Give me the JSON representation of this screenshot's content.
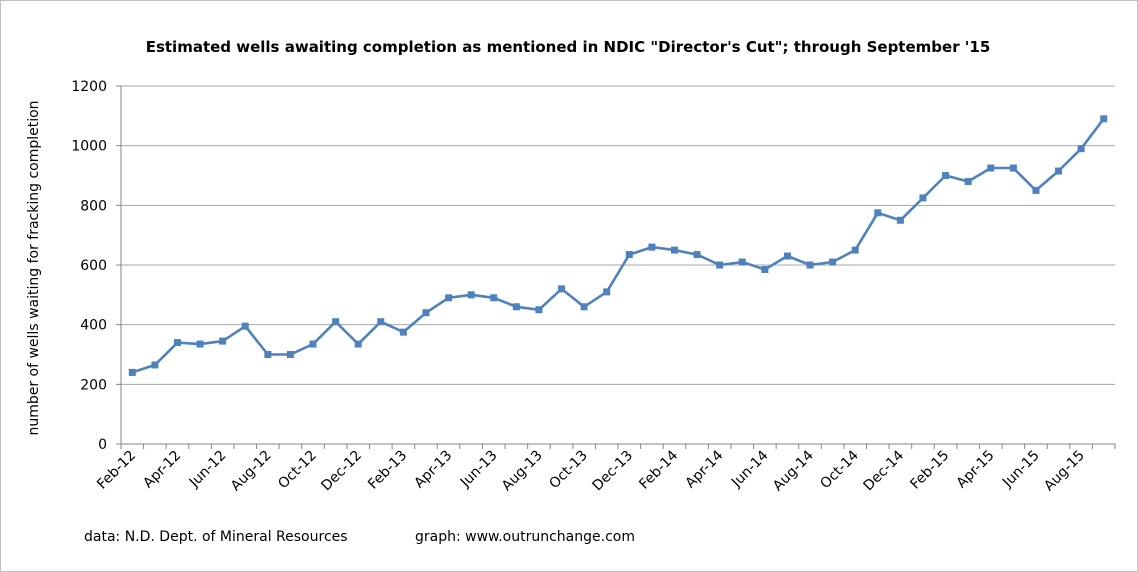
{
  "chart_data": {
    "type": "line",
    "title": "Estimated wells awaiting completion as mentioned in NDIC \"Director's Cut\"; through September '15",
    "ylabel": "number of wells waiting for fracking completion",
    "xlabel": "",
    "ylim": [
      0,
      1200
    ],
    "yticks": [
      0,
      200,
      400,
      600,
      800,
      1000,
      1200
    ],
    "grid": "horizontal",
    "legend": "none",
    "series": [
      {
        "color": "#4f81bd",
        "marker": "square",
        "values": [
          240,
          265,
          340,
          335,
          345,
          395,
          300,
          300,
          335,
          410,
          335,
          410,
          375,
          440,
          490,
          500,
          490,
          460,
          450,
          520,
          460,
          510,
          635,
          660,
          650,
          635,
          600,
          610,
          585,
          630,
          600,
          610,
          650,
          775,
          750,
          825,
          900,
          880,
          925,
          925,
          850,
          915,
          990,
          1090
        ]
      }
    ],
    "categories": [
      "Feb-12",
      "Mar-12",
      "Apr-12",
      "May-12",
      "Jun-12",
      "Jul-12",
      "Aug-12",
      "Sep-12",
      "Oct-12",
      "Nov-12",
      "Dec-12",
      "Jan-13",
      "Feb-13",
      "Mar-13",
      "Apr-13",
      "May-13",
      "Jun-13",
      "Jul-13",
      "Aug-13",
      "Sep-13",
      "Oct-13",
      "Nov-13",
      "Dec-13",
      "Jan-14",
      "Feb-14",
      "Mar-14",
      "Apr-14",
      "May-14",
      "Jun-14",
      "Jul-14",
      "Aug-14",
      "Sep-14",
      "Oct-14",
      "Nov-14",
      "Dec-14",
      "Jan-15",
      "Feb-15",
      "Mar-15",
      "Apr-15",
      "May-15",
      "Jun-15",
      "Jul-15",
      "Aug-15",
      "Sep-15"
    ],
    "tick_labels": [
      "Feb-12",
      "Apr-12",
      "Jun-12",
      "Aug-12",
      "Oct-12",
      "Dec-12",
      "Feb-13",
      "Apr-13",
      "Jun-13",
      "Aug-13",
      "Oct-13",
      "Dec-13",
      "Feb-14",
      "Apr-14",
      "Jun-14",
      "Aug-14",
      "Oct-14",
      "Dec-14",
      "Feb-15",
      "Apr-15",
      "Jun-15",
      "Aug-15"
    ],
    "tick_label_indices": [
      0,
      2,
      4,
      6,
      8,
      10,
      12,
      14,
      16,
      18,
      20,
      22,
      24,
      26,
      28,
      30,
      32,
      34,
      36,
      38,
      40,
      42
    ]
  },
  "notes": {
    "source": "data: N.D. Dept. of Mineral Resources",
    "credit": "graph:  www.outrunchange.com"
  },
  "colors": {
    "line": "#4f81bd",
    "grid": "#a6a6a6",
    "axis": "#868686"
  }
}
